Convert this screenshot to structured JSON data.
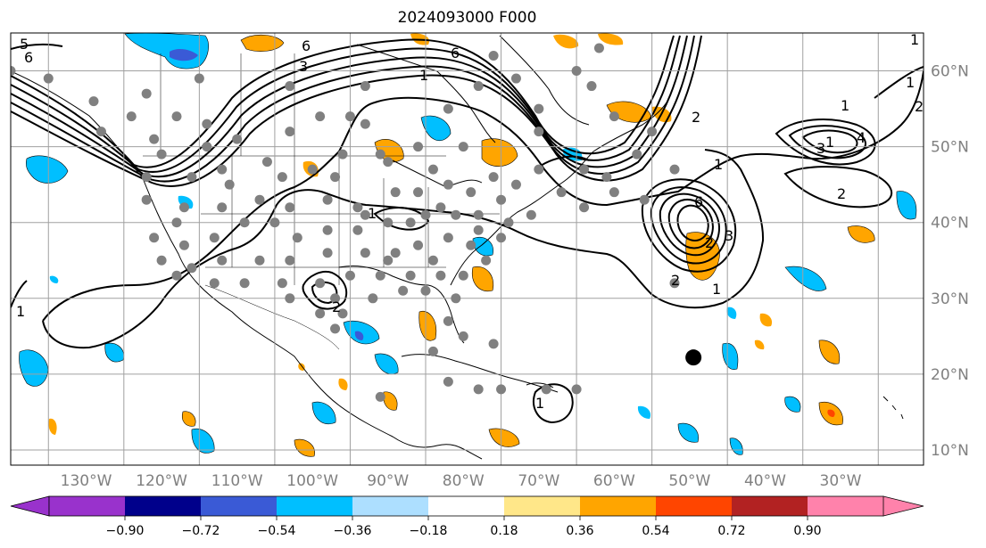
{
  "title": "2024093000 F000",
  "map": {
    "lon_range": [
      -140,
      -19
    ],
    "lat_range": [
      8,
      65
    ],
    "lon_ticks": [
      {
        "value": -130,
        "label": "130°W"
      },
      {
        "value": -120,
        "label": "120°W"
      },
      {
        "value": -110,
        "label": "110°W"
      },
      {
        "value": -100,
        "label": "100°W"
      },
      {
        "value": -90,
        "label": "90°W"
      },
      {
        "value": -80,
        "label": "80°W"
      },
      {
        "value": -70,
        "label": "70°W"
      },
      {
        "value": -60,
        "label": "60°W"
      },
      {
        "value": -50,
        "label": "50°W"
      },
      {
        "value": -40,
        "label": "40°W"
      },
      {
        "value": -30,
        "label": "30°W"
      }
    ],
    "lat_ticks": [
      {
        "value": 60,
        "label": "60°N"
      },
      {
        "value": 50,
        "label": "50°N"
      },
      {
        "value": 40,
        "label": "40°N"
      },
      {
        "value": 30,
        "label": "30°N"
      },
      {
        "value": 20,
        "label": "20°N"
      },
      {
        "value": 10,
        "label": "10°N"
      }
    ],
    "grid": true,
    "highlight_marker": {
      "lon": -49.5,
      "lat": 22.2,
      "color": "#000000"
    },
    "contour_labels": [
      "5",
      "6",
      "3",
      "1",
      "6",
      "6",
      "1",
      "2",
      "1",
      "1",
      "1",
      "2",
      "1",
      "4",
      "3",
      "2",
      "6",
      "2",
      "3",
      "1",
      "1",
      "1",
      "1",
      "2",
      "2"
    ],
    "station_color": "#808080",
    "stations": [
      [
        -140,
        60
      ],
      [
        -135,
        59
      ],
      [
        -129,
        56
      ],
      [
        -124,
        54
      ],
      [
        -118,
        54
      ],
      [
        -114,
        53
      ],
      [
        -128,
        52
      ],
      [
        -121,
        51
      ],
      [
        -110,
        51
      ],
      [
        -114,
        50
      ],
      [
        -103,
        52
      ],
      [
        -99,
        54
      ],
      [
        -95,
        54
      ],
      [
        -120,
        49
      ],
      [
        -112,
        47
      ],
      [
        -106,
        48
      ],
      [
        -96,
        49
      ],
      [
        -91,
        49
      ],
      [
        -122,
        46
      ],
      [
        -116,
        46
      ],
      [
        -111,
        45
      ],
      [
        -104,
        46
      ],
      [
        -100,
        47
      ],
      [
        -97,
        46
      ],
      [
        -90,
        48
      ],
      [
        -84,
        47
      ],
      [
        -86,
        44
      ],
      [
        -122,
        43
      ],
      [
        -117,
        42
      ],
      [
        -112,
        42
      ],
      [
        -107,
        43
      ],
      [
        -103,
        42
      ],
      [
        -98,
        43
      ],
      [
        -94,
        42
      ],
      [
        -89,
        44
      ],
      [
        -83,
        42
      ],
      [
        -82,
        45
      ],
      [
        -79,
        44
      ],
      [
        -76,
        46
      ],
      [
        -73,
        45
      ],
      [
        -70,
        47
      ],
      [
        -64,
        47
      ],
      [
        -61,
        46
      ],
      [
        -67,
        44
      ],
      [
        -60,
        44
      ],
      [
        -64,
        42
      ],
      [
        -56,
        43
      ],
      [
        -52,
        47
      ],
      [
        -57,
        49
      ],
      [
        -55,
        52
      ],
      [
        -60,
        54
      ],
      [
        -70,
        55
      ],
      [
        -80,
        50
      ],
      [
        -86,
        50
      ],
      [
        -82,
        55
      ],
      [
        -73,
        59
      ],
      [
        -76,
        62
      ],
      [
        -63,
        58
      ],
      [
        -62,
        63
      ],
      [
        -65,
        60
      ],
      [
        -70,
        52
      ],
      [
        -78,
        58
      ],
      [
        -93,
        58
      ],
      [
        -103,
        58
      ],
      [
        -115,
        59
      ],
      [
        -122,
        57
      ],
      [
        -118,
        40
      ],
      [
        -121,
        38
      ],
      [
        -117,
        37
      ],
      [
        -113,
        38
      ],
      [
        -109,
        40
      ],
      [
        -105,
        40
      ],
      [
        -102,
        38
      ],
      [
        -98,
        39
      ],
      [
        -94,
        39
      ],
      [
        -90,
        40
      ],
      [
        -87,
        40
      ],
      [
        -85,
        41
      ],
      [
        -81,
        41
      ],
      [
        -78,
        41
      ],
      [
        -74,
        40
      ],
      [
        -78,
        39
      ],
      [
        -82,
        38
      ],
      [
        -86,
        37
      ],
      [
        -89,
        36
      ],
      [
        -93,
        36
      ],
      [
        -98,
        36
      ],
      [
        -103,
        35
      ],
      [
        -107,
        35
      ],
      [
        -112,
        35
      ],
      [
        -116,
        34
      ],
      [
        -120,
        35
      ],
      [
        -118,
        33
      ],
      [
        -113,
        32
      ],
      [
        -109,
        32
      ],
      [
        -104,
        32
      ],
      [
        -99,
        32
      ],
      [
        -95,
        33
      ],
      [
        -91,
        33
      ],
      [
        -87,
        33
      ],
      [
        -83,
        33
      ],
      [
        -80,
        33
      ],
      [
        -77,
        35
      ],
      [
        -84,
        35
      ],
      [
        -90,
        35
      ],
      [
        -97,
        30
      ],
      [
        -96,
        28
      ],
      [
        -92,
        30
      ],
      [
        -88,
        31
      ],
      [
        -85,
        31
      ],
      [
        -81,
        30
      ],
      [
        -82,
        27
      ],
      [
        -80,
        25
      ],
      [
        -76,
        24
      ],
      [
        -97,
        26
      ],
      [
        -99,
        28
      ],
      [
        -103,
        30
      ],
      [
        -52,
        32
      ],
      [
        -91,
        17
      ],
      [
        -82,
        19
      ],
      [
        -78,
        18
      ],
      [
        -75,
        18
      ],
      [
        -69,
        18
      ],
      [
        -65,
        18
      ],
      [
        -84,
        23
      ],
      [
        -75,
        38
      ],
      [
        -71,
        41
      ],
      [
        -93,
        41
      ],
      [
        -79,
        37
      ],
      [
        -75,
        43
      ],
      [
        -93,
        53
      ]
    ],
    "fill_colors": {
      "neg_strong": "#3a5ad6",
      "neg": "#00bfff",
      "pos": "#ffa500",
      "pos_strong": "#ff4500"
    }
  },
  "colorbar": {
    "colors": [
      "#9932cc",
      "#00008b",
      "#3a5ad6",
      "#00bfff",
      "#addfff",
      "#ffffff",
      "#ffe789",
      "#ffa500",
      "#ff4500",
      "#b22222",
      "#ff82ab"
    ],
    "min_color": "#9932cc",
    "max_color": "#ff82ab",
    "labels": [
      "−0.90",
      "−0.72",
      "−0.54",
      "−0.36",
      "−0.18",
      "0.18",
      "0.36",
      "0.54",
      "0.72",
      "0.90"
    ]
  }
}
